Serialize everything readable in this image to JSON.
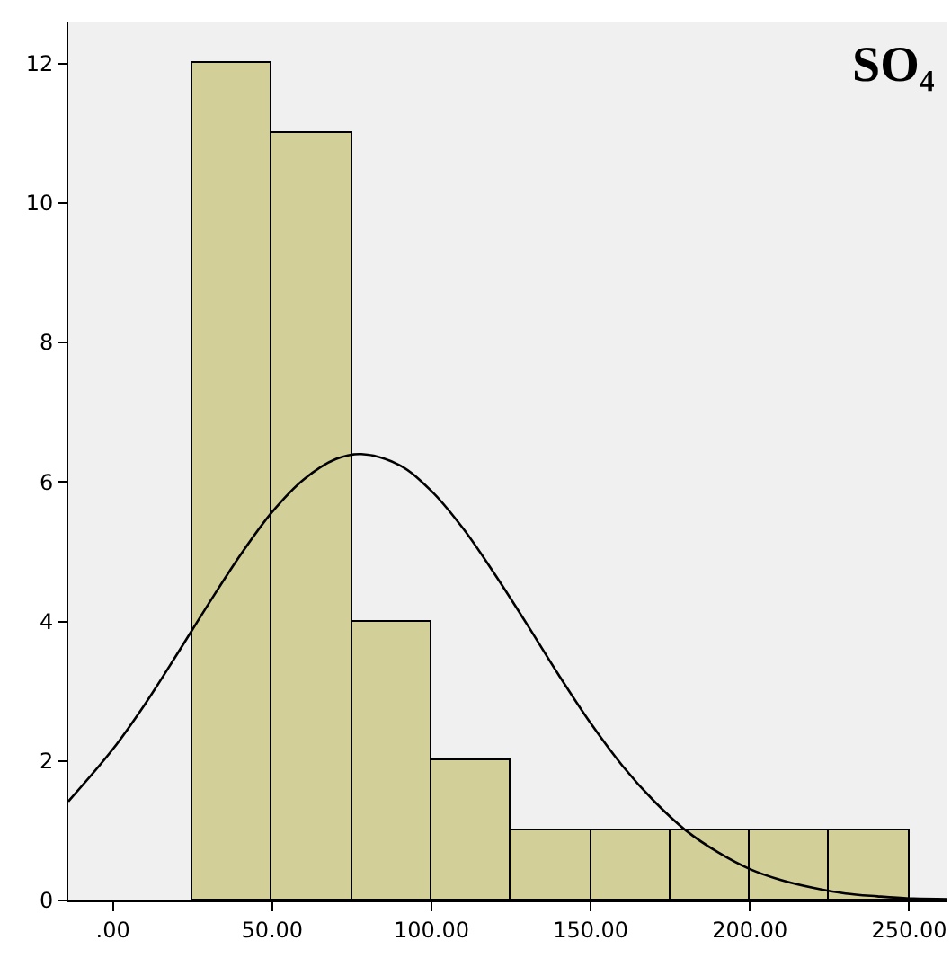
{
  "chart_data": {
    "type": "histogram",
    "title": "SO₄",
    "bins": [
      25,
      50,
      75,
      100,
      125,
      150,
      175,
      200,
      225,
      250
    ],
    "values": [
      12,
      11,
      4,
      2,
      1,
      1,
      1,
      1,
      1
    ],
    "color": "#d3cf98",
    "series": [
      {
        "type": "line",
        "color": "#000000",
        "x": [
          -14,
          0,
          10,
          20,
          30,
          40,
          50,
          60,
          70,
          78,
          90,
          100,
          110,
          120,
          130,
          140,
          150,
          160,
          170,
          180,
          190,
          200,
          210,
          220,
          230,
          240,
          250,
          262
        ],
        "values": [
          1.42,
          2.17,
          2.81,
          3.52,
          4.25,
          4.95,
          5.57,
          6.04,
          6.33,
          6.4,
          6.24,
          5.87,
          5.33,
          4.67,
          3.96,
          3.23,
          2.54,
          1.93,
          1.42,
          1.0,
          0.69,
          0.45,
          0.29,
          0.18,
          0.1,
          0.06,
          0.03,
          0.02
        ]
      }
    ],
    "xlim": [
      -14,
      262
    ],
    "xticks": [
      {
        "value": 0,
        "label": ".00"
      },
      {
        "value": 50,
        "label": "50.00"
      },
      {
        "value": 100,
        "label": "100.00"
      },
      {
        "value": 150,
        "label": "150.00"
      },
      {
        "value": 200,
        "label": "200.00"
      },
      {
        "value": 250,
        "label": "250.00"
      }
    ],
    "ylim": [
      0,
      12.6
    ],
    "yticks": [
      0,
      2,
      4,
      6,
      8,
      10,
      12
    ]
  }
}
